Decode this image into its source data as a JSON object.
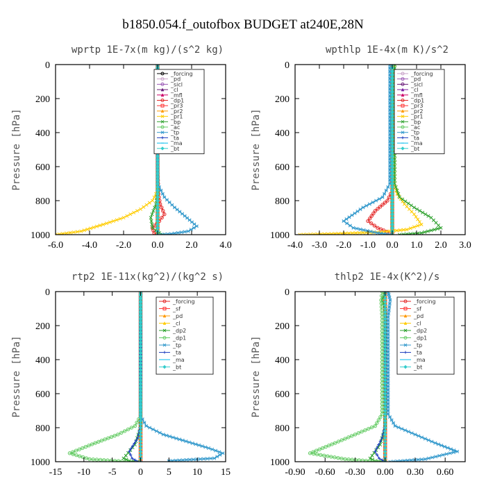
{
  "figure": {
    "title": "b1850.054.f_outofbox  BUDGET at240E,28N"
  },
  "chart_data": [
    {
      "type": "line",
      "title": "wprtp  1E-7x(m kg)/(s^2 kg)",
      "ylabel": "Pressure [hPa]",
      "xlim": [
        -6,
        4
      ],
      "ylim": [
        1000,
        0
      ],
      "xticks": [
        "-6.0",
        "-4.0",
        "-2.0",
        "0.0",
        "2.0",
        "4.0"
      ],
      "xtick_values": [
        -6,
        -4,
        -2,
        0,
        2,
        4
      ],
      "yticks": [
        "0",
        "200",
        "400",
        "600",
        "800",
        "1000"
      ],
      "ytick_values": [
        0,
        200,
        400,
        600,
        800,
        1000
      ],
      "legend_position": "top-right",
      "series": [
        {
          "name": "_forcing",
          "color": "#000000",
          "marker": "circle",
          "x": [
            0,
            0,
            0,
            0
          ],
          "y": [
            0,
            400,
            800,
            1000
          ]
        },
        {
          "name": "_pd",
          "color": "#c8a2c8",
          "marker": "circle",
          "x": [
            0,
            0,
            0,
            0
          ],
          "y": [
            0,
            400,
            800,
            1000
          ]
        },
        {
          "name": "_sicl",
          "color": "#9b59b6",
          "marker": "circle",
          "x": [
            0,
            0,
            0,
            0
          ],
          "y": [
            0,
            400,
            800,
            1000
          ]
        },
        {
          "name": "_cl",
          "color": "#6a1b7a",
          "marker": "triangle",
          "x": [
            0,
            0,
            0,
            0
          ],
          "y": [
            0,
            400,
            800,
            1000
          ]
        },
        {
          "name": "_mfl",
          "color": "#cc0066",
          "marker": "triangle",
          "x": [
            0,
            0,
            0,
            0
          ],
          "y": [
            0,
            400,
            800,
            1000
          ]
        },
        {
          "name": "_dp1",
          "color": "#e32626",
          "marker": "circle",
          "x": [
            0,
            0,
            0.05,
            0.15,
            0.4,
            0.1,
            -0.3,
            -0.2,
            0
          ],
          "y": [
            0,
            600,
            760,
            820,
            880,
            920,
            960,
            990,
            1000
          ]
        },
        {
          "name": "_pr3",
          "color": "#ff3333",
          "marker": "square",
          "x": [
            0,
            0,
            0,
            0
          ],
          "y": [
            0,
            400,
            800,
            1000
          ]
        },
        {
          "name": "_pr2",
          "color": "#ff9900",
          "marker": "triangle",
          "x": [
            0,
            0,
            0,
            0
          ],
          "y": [
            0,
            400,
            800,
            1000
          ]
        },
        {
          "name": "_pr1",
          "color": "#ffcc00",
          "marker": "cross",
          "x": [
            0,
            0,
            -0.3,
            -1.0,
            -2.0,
            -3.2,
            -4.5,
            -6.0
          ],
          "y": [
            0,
            740,
            800,
            850,
            900,
            940,
            980,
            1000
          ]
        },
        {
          "name": "_bp",
          "color": "#2ca02c",
          "marker": "cross",
          "x": [
            0,
            0,
            -0.1,
            -0.4,
            -0.3,
            0.1,
            0.3
          ],
          "y": [
            0,
            760,
            820,
            900,
            960,
            990,
            1000
          ]
        },
        {
          "name": "_ac",
          "color": "#66cc66",
          "marker": "circle",
          "x": [
            0,
            0,
            0,
            0
          ],
          "y": [
            0,
            400,
            800,
            1000
          ]
        },
        {
          "name": "_tp",
          "color": "#3399cc",
          "marker": "star",
          "x": [
            0,
            0,
            0.4,
            1.0,
            1.6,
            2.3,
            1.8,
            0.8,
            0.2
          ],
          "y": [
            0,
            700,
            780,
            840,
            890,
            950,
            980,
            995,
            1000
          ]
        },
        {
          "name": "_ta",
          "color": "#1f3fbf",
          "marker": "plus",
          "x": [
            0,
            0,
            0,
            0
          ],
          "y": [
            0,
            400,
            800,
            1000
          ]
        },
        {
          "name": "_ma",
          "color": "#00bbee",
          "marker": "dash",
          "x": [
            0,
            0,
            0,
            0
          ],
          "y": [
            0,
            400,
            800,
            1000
          ]
        },
        {
          "name": "_bt",
          "color": "#33cccc",
          "marker": "diamond",
          "x": [
            0,
            0,
            0,
            0
          ],
          "y": [
            0,
            400,
            800,
            1000
          ]
        }
      ]
    },
    {
      "type": "line",
      "title": "wpthlp  1E-4x(m K)/s^2",
      "ylabel": "Pressure [hPa]",
      "xlim": [
        -4,
        3
      ],
      "ylim": [
        1000,
        0
      ],
      "xticks": [
        "-4.0",
        "-3.0",
        "-2.0",
        "-1.0",
        "0.0",
        "1.0",
        "2.0",
        "3.0"
      ],
      "xtick_values": [
        -4,
        -3,
        -2,
        -1,
        0,
        1,
        2,
        3
      ],
      "yticks": [
        "0",
        "200",
        "400",
        "600",
        "800",
        "1000"
      ],
      "ytick_values": [
        0,
        200,
        400,
        600,
        800,
        1000
      ],
      "legend_position": "top-right",
      "series": [
        {
          "name": "_forcing",
          "color": "#c8a2c8",
          "marker": "circle",
          "x": [
            0,
            0,
            0,
            0
          ],
          "y": [
            0,
            400,
            800,
            1000
          ]
        },
        {
          "name": "_pd",
          "color": "#9b59b6",
          "marker": "circle",
          "x": [
            0,
            0,
            0,
            0
          ],
          "y": [
            0,
            400,
            800,
            1000
          ]
        },
        {
          "name": "_sicl",
          "color": "#6a1b7a",
          "marker": "circle",
          "x": [
            0,
            0,
            0,
            0
          ],
          "y": [
            0,
            400,
            800,
            1000
          ]
        },
        {
          "name": "_cl",
          "color": "#7b1fa2",
          "marker": "triangle",
          "x": [
            0,
            0,
            0,
            0
          ],
          "y": [
            0,
            400,
            800,
            1000
          ]
        },
        {
          "name": "_mfl",
          "color": "#cc0066",
          "marker": "triangle",
          "x": [
            0,
            0,
            0,
            0
          ],
          "y": [
            0,
            400,
            800,
            1000
          ]
        },
        {
          "name": "_dp1",
          "color": "#e32626",
          "marker": "circle",
          "x": [
            0,
            0,
            -0.2,
            -0.7,
            -1.0,
            -0.6,
            -0.1,
            0
          ],
          "y": [
            0,
            740,
            800,
            860,
            920,
            960,
            990,
            1000
          ]
        },
        {
          "name": "_pr3",
          "color": "#ff3333",
          "marker": "square",
          "x": [
            0,
            0,
            0,
            0
          ],
          "y": [
            0,
            400,
            800,
            1000
          ]
        },
        {
          "name": "_pr2",
          "color": "#ff9900",
          "marker": "triangle",
          "x": [
            0,
            0,
            0,
            0
          ],
          "y": [
            0,
            400,
            800,
            1000
          ]
        },
        {
          "name": "_pr1",
          "color": "#ffcc00",
          "marker": "cross",
          "x": [
            0.1,
            0.1,
            0.2,
            0.5,
            0.9,
            1.2,
            0.6,
            -0.5,
            -2.5,
            -3.8
          ],
          "y": [
            0,
            700,
            760,
            820,
            880,
            940,
            970,
            985,
            995,
            1000
          ]
        },
        {
          "name": "_bp",
          "color": "#2ca02c",
          "marker": "cross",
          "x": [
            0.1,
            0.1,
            0.3,
            0.9,
            1.6,
            2.0,
            1.2,
            0.3
          ],
          "y": [
            0,
            700,
            780,
            840,
            900,
            960,
            990,
            1000
          ]
        },
        {
          "name": "_ac",
          "color": "#66cc66",
          "marker": "circle",
          "x": [
            0,
            0,
            0,
            0
          ],
          "y": [
            0,
            400,
            800,
            1000
          ]
        },
        {
          "name": "_tp",
          "color": "#3399cc",
          "marker": "star",
          "x": [
            -0.1,
            -0.1,
            -0.4,
            -1.2,
            -2.0,
            -1.6,
            -0.6,
            -0.1
          ],
          "y": [
            0,
            700,
            780,
            840,
            920,
            960,
            990,
            1000
          ]
        },
        {
          "name": "_ta",
          "color": "#1f3fbf",
          "marker": "plus",
          "x": [
            0,
            0,
            0,
            0
          ],
          "y": [
            0,
            400,
            800,
            1000
          ]
        },
        {
          "name": "_ma",
          "color": "#00bbee",
          "marker": "dash",
          "x": [
            0,
            0,
            0,
            0
          ],
          "y": [
            0,
            400,
            800,
            1000
          ]
        },
        {
          "name": "_bt",
          "color": "#33cccc",
          "marker": "diamond",
          "x": [
            0,
            0,
            0,
            0
          ],
          "y": [
            0,
            400,
            800,
            1000
          ]
        }
      ]
    },
    {
      "type": "line",
      "title": "rtp2  1E-11x(kg^2)/(kg^2 s)",
      "ylabel": "Pressure [hPa]",
      "xlim": [
        -15,
        15
      ],
      "ylim": [
        1000,
        0
      ],
      "xticks": [
        "-15",
        "-10",
        "-5",
        "0",
        "5",
        "10",
        "15"
      ],
      "xtick_values": [
        -15,
        -10,
        -5,
        0,
        5,
        10,
        15
      ],
      "yticks": [
        "0",
        "200",
        "400",
        "600",
        "800",
        "1000"
      ],
      "ytick_values": [
        0,
        200,
        400,
        600,
        800,
        1000
      ],
      "legend_position": "top-right",
      "series": [
        {
          "name": "_forcing",
          "color": "#e32626",
          "marker": "circle",
          "x": [
            0,
            0,
            0,
            0
          ],
          "y": [
            0,
            400,
            800,
            1000
          ]
        },
        {
          "name": "_sf",
          "color": "#ff3333",
          "marker": "square",
          "x": [
            0,
            0,
            0,
            0
          ],
          "y": [
            0,
            400,
            800,
            1000
          ]
        },
        {
          "name": "_pd",
          "color": "#ff9900",
          "marker": "triangle",
          "x": [
            0,
            0,
            0,
            0
          ],
          "y": [
            0,
            400,
            800,
            1000
          ]
        },
        {
          "name": "_cl",
          "color": "#ffcc00",
          "marker": "triangle",
          "x": [
            0,
            0,
            0,
            0
          ],
          "y": [
            0,
            400,
            800,
            1000
          ]
        },
        {
          "name": "_dp2",
          "color": "#2ca02c",
          "marker": "cross",
          "x": [
            0,
            0,
            -1,
            -3,
            -2,
            -0.5
          ],
          "y": [
            0,
            800,
            900,
            980,
            995,
            1000
          ]
        },
        {
          "name": "_dp1",
          "color": "#66cc66",
          "marker": "circle",
          "x": [
            0,
            0,
            -1,
            -4,
            -8,
            -12.5,
            -9,
            -2
          ],
          "y": [
            0,
            730,
            790,
            840,
            890,
            950,
            985,
            1000
          ]
        },
        {
          "name": "_tp",
          "color": "#3399cc",
          "marker": "star",
          "x": [
            0,
            0,
            1,
            4,
            8,
            12,
            14.5,
            13,
            5
          ],
          "y": [
            0,
            730,
            790,
            840,
            880,
            920,
            950,
            980,
            995
          ]
        },
        {
          "name": "_ta",
          "color": "#1f3fbf",
          "marker": "plus",
          "x": [
            0,
            0,
            -0.5,
            -2,
            -1.5,
            -0.5
          ],
          "y": [
            0,
            780,
            860,
            940,
            980,
            1000
          ]
        },
        {
          "name": "_ma",
          "color": "#00bbee",
          "marker": "dash",
          "x": [
            0,
            0,
            0,
            0
          ],
          "y": [
            0,
            400,
            800,
            1000
          ]
        },
        {
          "name": "_bt",
          "color": "#33cccc",
          "marker": "diamond",
          "x": [
            0,
            0,
            0,
            0
          ],
          "y": [
            0,
            400,
            800,
            1000
          ]
        }
      ]
    },
    {
      "type": "line",
      "title": "thlp2  1E-4x(K^2)/s",
      "ylabel": "Pressure [hPa]",
      "xlim": [
        -0.9,
        0.8
      ],
      "ylim": [
        1000,
        0
      ],
      "xticks": [
        "-0.90",
        "-0.60",
        "-0.30",
        "0.00",
        "0.30",
        "0.60"
      ],
      "xtick_values": [
        -0.9,
        -0.6,
        -0.3,
        0,
        0.3,
        0.6
      ],
      "yticks": [
        "0",
        "200",
        "400",
        "600",
        "800",
        "1000"
      ],
      "ytick_values": [
        0,
        200,
        400,
        600,
        800,
        1000
      ],
      "legend_position": "top-right",
      "series": [
        {
          "name": "_forcing",
          "color": "#e32626",
          "marker": "circle",
          "x": [
            0,
            0,
            0,
            0
          ],
          "y": [
            0,
            400,
            800,
            1000
          ]
        },
        {
          "name": "_sf",
          "color": "#ff3333",
          "marker": "square",
          "x": [
            0,
            0,
            0,
            0
          ],
          "y": [
            0,
            400,
            800,
            1000
          ]
        },
        {
          "name": "_pd",
          "color": "#ff9900",
          "marker": "triangle",
          "x": [
            0,
            0,
            0,
            0
          ],
          "y": [
            0,
            400,
            800,
            1000
          ]
        },
        {
          "name": "_cl",
          "color": "#ffcc00",
          "marker": "triangle",
          "x": [
            0,
            0,
            0,
            0
          ],
          "y": [
            0,
            400,
            800,
            1000
          ]
        },
        {
          "name": "_dp2",
          "color": "#2ca02c",
          "marker": "cross",
          "x": [
            0,
            -0.03,
            0,
            0,
            -0.05,
            -0.15,
            -0.1,
            0
          ],
          "y": [
            0,
            50,
            100,
            800,
            900,
            980,
            995,
            1000
          ]
        },
        {
          "name": "_dp1",
          "color": "#66cc66",
          "marker": "circle",
          "x": [
            -0.03,
            -0.04,
            -0.03,
            -0.03,
            -0.1,
            -0.3,
            -0.5,
            -0.75,
            -0.4,
            -0.05
          ],
          "y": [
            0,
            50,
            150,
            720,
            790,
            840,
            890,
            950,
            985,
            1000
          ]
        },
        {
          "name": "_tp",
          "color": "#3399cc",
          "marker": "star",
          "x": [
            0.03,
            0.05,
            0.03,
            0.03,
            0.1,
            0.3,
            0.5,
            0.72,
            0.4,
            0.05
          ],
          "y": [
            0,
            50,
            150,
            720,
            790,
            840,
            890,
            940,
            985,
            1000
          ]
        },
        {
          "name": "_ta",
          "color": "#1f3fbf",
          "marker": "plus",
          "x": [
            0,
            0,
            -0.03,
            -0.1,
            -0.06,
            0
          ],
          "y": [
            0,
            780,
            860,
            940,
            980,
            1000
          ]
        },
        {
          "name": "_ma",
          "color": "#00bbee",
          "marker": "dash",
          "x": [
            0,
            0,
            0,
            0
          ],
          "y": [
            0,
            400,
            800,
            1000
          ]
        },
        {
          "name": "_bt",
          "color": "#33cccc",
          "marker": "diamond",
          "x": [
            0,
            0,
            0,
            0
          ],
          "y": [
            0,
            400,
            800,
            1000
          ]
        }
      ]
    }
  ]
}
